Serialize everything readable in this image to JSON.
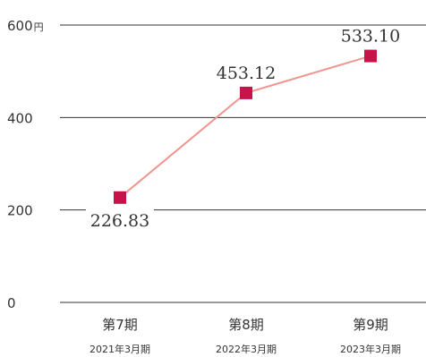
{
  "chart_data": {
    "type": "line",
    "categories": [
      "第7期",
      "第8期",
      "第9期"
    ],
    "category_sublabels": [
      "2021年3月期",
      "2022年3月期",
      "2023年3月期"
    ],
    "values": [
      226.83,
      453.12,
      533.1
    ],
    "value_labels": [
      "226.83",
      "453.12",
      "533.10"
    ],
    "y_ticks": [
      {
        "value": 0,
        "label": "0"
      },
      {
        "value": 200,
        "label": "200"
      },
      {
        "value": 400,
        "label": "400"
      },
      {
        "value": 600,
        "label": "600"
      }
    ],
    "y_unit": "円",
    "ylim": [
      0,
      600
    ],
    "grid": true,
    "colors": {
      "line": "#f0958f",
      "marker": "#c8124a",
      "grid": "#333333",
      "text": "#333333"
    }
  }
}
